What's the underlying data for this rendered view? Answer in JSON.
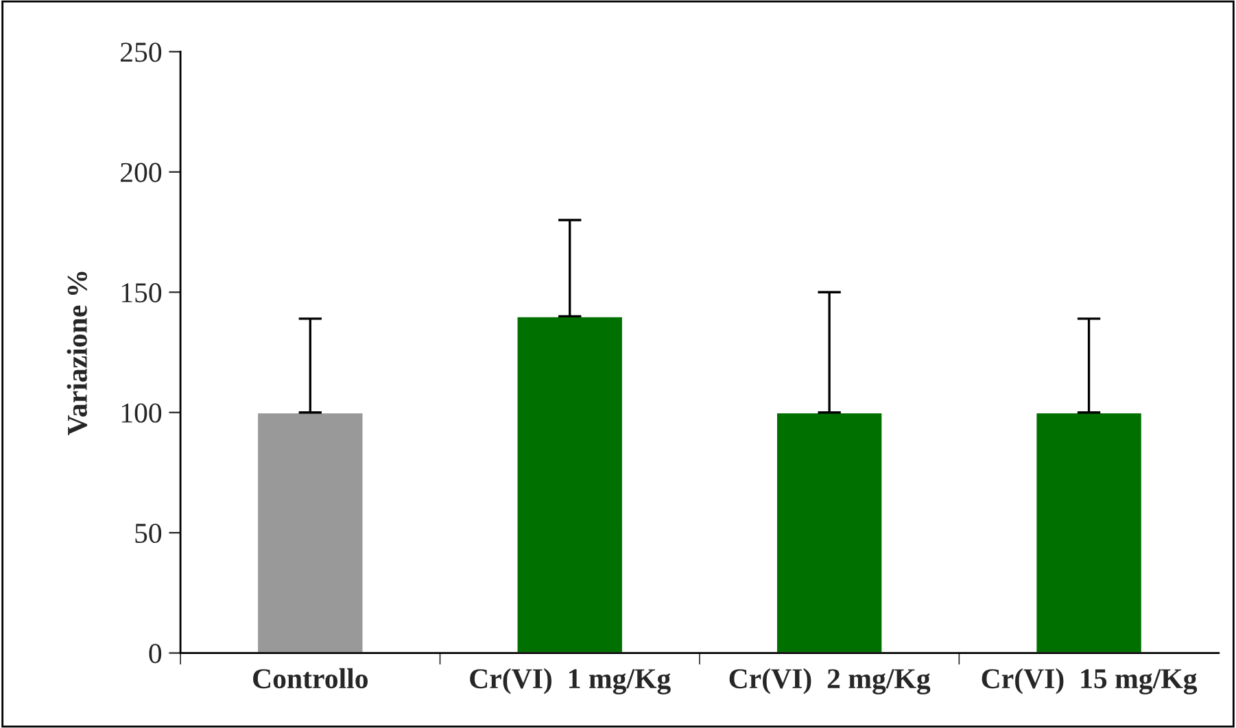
{
  "chart_data": {
    "type": "bar",
    "ylabel": "Variazione %",
    "categories": [
      "Controllo",
      "Cr(VI)  1 mg/Kg",
      "Cr(VI)  2 mg/Kg",
      "Cr(VI)  15 mg/Kg"
    ],
    "values": [
      100,
      140,
      100,
      100
    ],
    "errors": [
      [
        100,
        139
      ],
      [
        140,
        180
      ],
      [
        100,
        150
      ],
      [
        100,
        139
      ]
    ],
    "colors": [
      "#999999",
      "#007000",
      "#007000",
      "#007000"
    ],
    "ylim": [
      0,
      250
    ],
    "yticks": [
      0,
      50,
      100,
      150,
      200,
      250
    ],
    "grid": false,
    "legend": false
  }
}
